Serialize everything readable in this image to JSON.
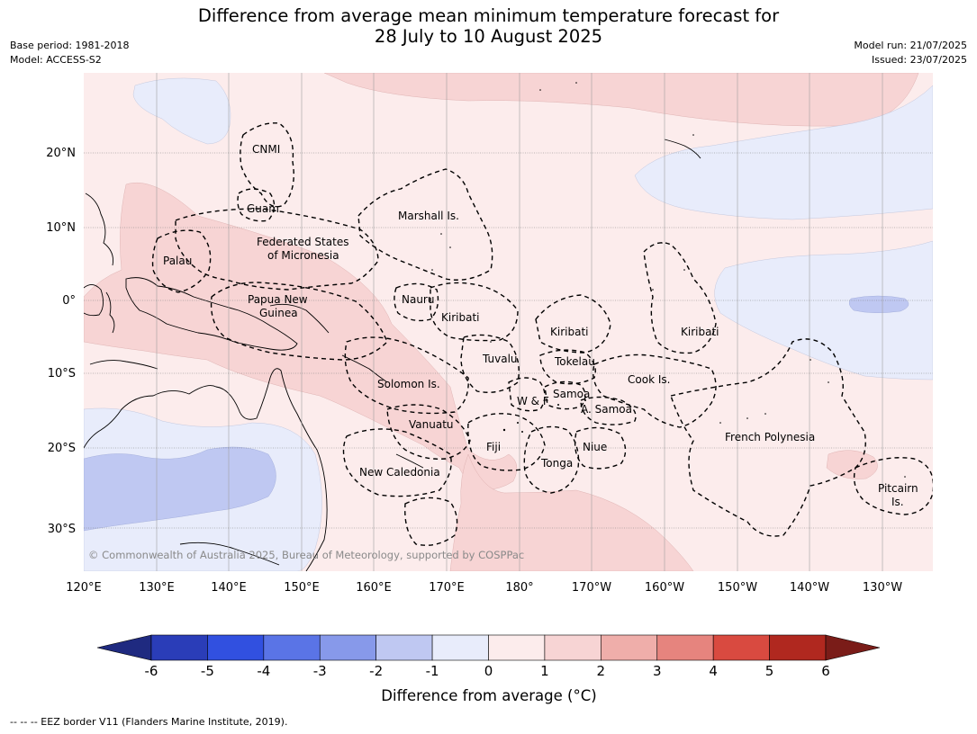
{
  "title": {
    "line1": "Difference from average mean minimum temperature forecast for",
    "line2": "28 July to 10 August 2025"
  },
  "meta": {
    "base_period": "Base period: 1981-2018",
    "model": "Model: ACCESS-S2",
    "model_run": "Model run: 21/07/2025",
    "issued": "Issued: 23/07/2025"
  },
  "axes": {
    "lon_labels": [
      "120°E",
      "130°E",
      "140°E",
      "150°E",
      "160°E",
      "170°E",
      "180°",
      "170°W",
      "160°W",
      "150°W",
      "140°W",
      "130°W"
    ],
    "lat_labels": [
      "20°N",
      "10°N",
      "0°",
      "10°S",
      "20°S",
      "30°S"
    ]
  },
  "regions": [
    {
      "name": "CNMI"
    },
    {
      "name": "Guam"
    },
    {
      "name": "Marshall Is."
    },
    {
      "name": "Federated States"
    },
    {
      "name": "of Micronesia"
    },
    {
      "name": "Palau"
    },
    {
      "name": "Papua New"
    },
    {
      "name": "Guinea"
    },
    {
      "name": "Nauru"
    },
    {
      "name": "Kiribati"
    },
    {
      "name": "Kiribati"
    },
    {
      "name": "Kiribati"
    },
    {
      "name": "Tuvalu"
    },
    {
      "name": "Tokelau"
    },
    {
      "name": "Solomon Is."
    },
    {
      "name": "Cook Is."
    },
    {
      "name": "Samoa"
    },
    {
      "name": "W & F"
    },
    {
      "name": "A. Samoa"
    },
    {
      "name": "Vanuatu"
    },
    {
      "name": "Fiji"
    },
    {
      "name": "Niue"
    },
    {
      "name": "French Polynesia"
    },
    {
      "name": "Tonga"
    },
    {
      "name": "New Caledonia"
    },
    {
      "name": "Pitcairn"
    },
    {
      "name": "Is."
    }
  ],
  "copyright": "© Commonwealth of Australia 2025, Bureau of Meteorology, supported by COSPPac",
  "colorbar": {
    "title": "Difference from average (°C)",
    "ticks": [
      "-6",
      "-5",
      "-4",
      "-3",
      "-2",
      "-1",
      "0",
      "1",
      "2",
      "3",
      "4",
      "5",
      "6"
    ],
    "colors": [
      "#1f2a80",
      "#2a3db8",
      "#3150e0",
      "#5a74e6",
      "#8799ea",
      "#bfc8f2",
      "#e8ecfb",
      "#fcecec",
      "#f7d4d4",
      "#efaeaa",
      "#e6847e",
      "#d94a40",
      "#b0281f",
      "#7a1c18"
    ]
  },
  "fill_colors": {
    "ocean_neutral": "#fcecec",
    "warm_1_2": "#f7d4d4",
    "cool_0_neg1": "#e8ecfb",
    "cool_neg1_neg2": "#bfc8f2"
  },
  "footer": "--  --  -- EEZ border V11 (Flanders Marine Institute, 2019)."
}
